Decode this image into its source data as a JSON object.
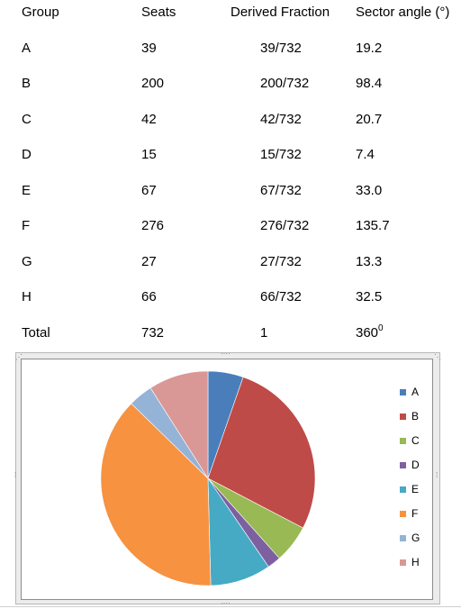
{
  "table": {
    "headers": [
      "Group",
      "Seats",
      "Derived Fraction",
      "Sector angle (°)"
    ],
    "rows": [
      {
        "group": "A",
        "seats": "39",
        "fraction": "39/732",
        "angle": "19.2"
      },
      {
        "group": "B",
        "seats": "200",
        "fraction": "200/732",
        "angle": "98.4"
      },
      {
        "group": "C",
        "seats": "42",
        "fraction": "42/732",
        "angle": "20.7"
      },
      {
        "group": "D",
        "seats": "15",
        "fraction": "15/732",
        "angle": "7.4"
      },
      {
        "group": "E",
        "seats": "67",
        "fraction": "67/732",
        "angle": "33.0"
      },
      {
        "group": "F",
        "seats": "276",
        "fraction": "276/732",
        "angle": "135.7"
      },
      {
        "group": "G",
        "seats": "27",
        "fraction": "27/732",
        "angle": "13.3"
      },
      {
        "group": "H",
        "seats": "66",
        "fraction": "66/732",
        "angle": "32.5"
      }
    ],
    "total": {
      "group": "Total",
      "seats": "732",
      "fraction": "1",
      "angle": "360",
      "angle_sup": "0"
    }
  },
  "chart_data": {
    "type": "pie",
    "categories": [
      "A",
      "B",
      "C",
      "D",
      "E",
      "F",
      "G",
      "H"
    ],
    "values": [
      39,
      200,
      42,
      15,
      67,
      276,
      27,
      66
    ],
    "colors": [
      "#4a7ebb",
      "#be4b48",
      "#98b954",
      "#7d60a0",
      "#46aac5",
      "#f69240",
      "#95b3d7",
      "#d99795"
    ],
    "legend_position": "right",
    "title": ""
  }
}
